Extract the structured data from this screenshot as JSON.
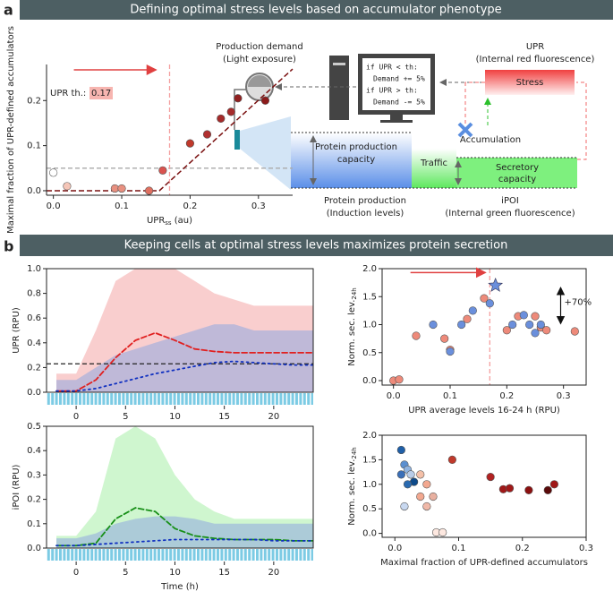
{
  "header_a": {
    "letter": "a",
    "title": "Defining optimal stress levels based on accumulator phenotype"
  },
  "header_b": {
    "letter": "b",
    "title": "Keeping cells at optimal stress levels maximizes protein secretion"
  },
  "diagram": {
    "demand": "Production demand",
    "demand_sub": "(Light exposure)",
    "upr": "UPR",
    "upr_sub": "(Internal red fluorescence)",
    "stress": "Stress",
    "code": [
      "if UPR < th:",
      "Demand += 5%",
      "if UPR > th:",
      "Demand -= 5%"
    ],
    "accumulation": "Accumulation",
    "capacity_1": "Protein production",
    "capacity_2": "capacity",
    "traffic": "Traffic",
    "secretory_1": "Secretory",
    "secretory_2": "capacity",
    "induction_1": "Protein production",
    "induction_2": "(Induction levels)",
    "ipoi": "iPOI",
    "ipoi_sub": "(Internal green fluorescence)"
  },
  "chart_data": [
    {
      "type": "scatter",
      "x_label": {
        "main": "UPR",
        "sub": "ss",
        "unit": " (au)"
      },
      "y_label": "Maximal fraction of UPR-defined accumulators",
      "xlim": [
        -0.01,
        0.35
      ],
      "xticks": [
        {
          "value": 0,
          "label": "0.0"
        },
        0.1,
        0.2,
        0.3
      ],
      "ylim": [
        -0.01,
        0.28
      ],
      "yticks": [
        {
          "value": 0,
          "label": "0.0"
        },
        0.1,
        0.2
      ],
      "series": [
        {
          "x": [
            0.0,
            0.02,
            0.09,
            0.1,
            0.14,
            0.16,
            0.2,
            0.225,
            0.245,
            0.26,
            0.27,
            0.31
          ],
          "values": [
            0.04,
            0.01,
            0.005,
            0.005,
            0.0,
            0.045,
            0.105,
            0.125,
            0.16,
            0.175,
            0.205,
            0.2
          ],
          "colors": [
            "#ffffff",
            "#f5c6b8",
            "#e89080",
            "#e89080",
            "#e07060",
            "#d9534f",
            "#c0392b",
            "#b03030",
            "#a52a2a",
            "#a52a2a",
            "#902020",
            "#8b1a1a"
          ]
        }
      ],
      "fit": {
        "x": [
          -0.01,
          0.155,
          0.35
        ],
        "values": [
          0.0,
          0.0,
          0.27
        ],
        "color": "#7a1010"
      },
      "vlines": [
        {
          "value": 0.17,
          "color": "#f4a0a0"
        }
      ],
      "hlines": [
        {
          "value": 0.05,
          "color": "#aaaaaa"
        }
      ],
      "annotation": "UPR th.:",
      "threshold": 0.17
    },
    {
      "type": "line",
      "y_label": "UPR (RPU)",
      "xlim": [
        -3,
        24
      ],
      "xticks": [
        0,
        5,
        10,
        15,
        20
      ],
      "ylim": [
        0,
        1
      ],
      "yticks": [
        {
          "value": 0,
          "label": "0.0"
        },
        0.2,
        0.4,
        0.6,
        0.8,
        {
          "value": 1,
          "label": "1.0"
        }
      ],
      "x": [
        -2,
        0,
        2,
        4,
        6,
        8,
        10,
        12,
        14,
        16,
        18,
        20,
        22,
        24
      ],
      "series": [
        {
          "kind": "area",
          "color": "#f4a6a6",
          "values": [
            0.15,
            0.15,
            0.5,
            0.9,
            1,
            1,
            1,
            0.9,
            0.8,
            0.75,
            0.7,
            0.7,
            0.7,
            0.7
          ]
        },
        {
          "kind": "area",
          "color": "#8fa8e0",
          "values": [
            0.1,
            0.1,
            0.2,
            0.3,
            0.35,
            0.4,
            0.45,
            0.5,
            0.55,
            0.55,
            0.5,
            0.5,
            0.5,
            0.5
          ]
        },
        {
          "style": "dashed",
          "color": "#e02020",
          "values": [
            0.01,
            0.01,
            0.1,
            0.28,
            0.42,
            0.48,
            0.42,
            0.35,
            0.33,
            0.32,
            0.32,
            0.32,
            0.32,
            0.32
          ]
        },
        {
          "style": "dotted",
          "color": "#1030c0",
          "values": [
            0.01,
            0.01,
            0.03,
            0.07,
            0.11,
            0.15,
            0.18,
            0.21,
            0.24,
            0.25,
            0.24,
            0.23,
            0.22,
            0.22
          ]
        }
      ],
      "hlines": [
        {
          "value": 0.23,
          "color": "#222222"
        }
      ]
    },
    {
      "type": "line",
      "y_label": "iPOI (RPU)",
      "x_label": "Time (h)",
      "xlim": [
        -3,
        24
      ],
      "xticks": [
        0,
        5,
        10,
        15,
        20
      ],
      "ylim": [
        0,
        0.5
      ],
      "yticks": [
        {
          "value": 0,
          "label": "0.0"
        },
        0.1,
        0.2,
        0.3,
        0.4,
        0.5
      ],
      "x": [
        -2,
        0,
        2,
        4,
        6,
        8,
        10,
        12,
        14,
        16,
        18,
        20,
        22,
        24
      ],
      "series": [
        {
          "kind": "area",
          "color": "#a8eea8",
          "values": [
            0.05,
            0.05,
            0.15,
            0.45,
            0.5,
            0.45,
            0.3,
            0.2,
            0.15,
            0.12,
            0.12,
            0.12,
            0.12,
            0.12
          ]
        },
        {
          "kind": "area",
          "color": "#8fa8e0",
          "values": [
            0.04,
            0.04,
            0.06,
            0.1,
            0.12,
            0.13,
            0.13,
            0.12,
            0.1,
            0.1,
            0.1,
            0.1,
            0.1,
            0.1
          ]
        },
        {
          "style": "dashed",
          "color": "#189018",
          "values": [
            0.01,
            0.01,
            0.02,
            0.12,
            0.165,
            0.15,
            0.08,
            0.05,
            0.04,
            0.035,
            0.035,
            0.035,
            0.03,
            0.03
          ]
        },
        {
          "style": "dotted",
          "color": "#1030c0",
          "values": [
            0.01,
            0.01,
            0.015,
            0.02,
            0.025,
            0.03,
            0.035,
            0.035,
            0.035,
            0.035,
            0.035,
            0.03,
            0.03,
            0.03
          ]
        }
      ]
    },
    {
      "type": "scatter",
      "y_label": {
        "main": "Norm. sec. lev.",
        "sub": "24h"
      },
      "x_label": "UPR average levels 16-24 h (RPU)",
      "xlim": [
        -0.02,
        0.34
      ],
      "xticks": [
        {
          "value": 0,
          "label": "0.0"
        },
        0.1,
        0.2,
        0.3
      ],
      "ylim": [
        -0.08,
        2.0
      ],
      "yticks": [
        {
          "value": 0,
          "label": "0.0"
        },
        0.5,
        {
          "value": 1,
          "label": "1.0"
        },
        1.5,
        {
          "value": 2,
          "label": "2.0"
        }
      ],
      "series": [
        {
          "color": "#ee8a7a",
          "x": [
            0.0,
            0.01,
            0.04,
            0.09,
            0.1,
            0.13,
            0.16,
            0.2,
            0.22,
            0.25,
            0.26,
            0.27,
            0.32
          ],
          "values": [
            0.0,
            0.02,
            0.8,
            0.75,
            0.55,
            1.1,
            1.47,
            0.9,
            1.15,
            1.15,
            0.95,
            0.9,
            0.88
          ]
        },
        {
          "color": "#6a8fdc",
          "x": [
            0.07,
            0.1,
            0.12,
            0.14,
            0.17,
            0.21,
            0.23,
            0.24,
            0.25,
            0.26
          ],
          "values": [
            1.0,
            0.52,
            1.0,
            1.25,
            1.38,
            1.0,
            1.17,
            1.0,
            0.85,
            1.0
          ]
        }
      ],
      "star": {
        "x": 0.18,
        "value": 1.7,
        "color": "#6a8fdc"
      },
      "vlines": [
        {
          "value": 0.17,
          "color": "#f4a0a0"
        }
      ],
      "annotation": "+70%"
    },
    {
      "type": "scatter",
      "y_label": {
        "main": "Norm. sec. lev.",
        "sub": "24h"
      },
      "x_label": "Maximal fraction of UPR-defined accumulators",
      "xlim": [
        -0.02,
        0.3
      ],
      "xticks": [
        {
          "value": 0,
          "label": "0.0"
        },
        0.1,
        0.2,
        0.3
      ],
      "ylim": [
        -0.08,
        2.0
      ],
      "yticks": [
        {
          "value": 0,
          "label": "0.0"
        },
        0.5,
        {
          "value": 1,
          "label": "1.0"
        },
        1.5,
        {
          "value": 2,
          "label": "2.0"
        }
      ],
      "series": [
        {
          "x": [
            0.01,
            0.015,
            0.02,
            0.01,
            0.025,
            0.03,
            0.02,
            0.015,
            0.04,
            0.05,
            0.04,
            0.06,
            0.05,
            0.065,
            0.075,
            0.09,
            0.15,
            0.17,
            0.18,
            0.21,
            0.24,
            0.25
          ],
          "values": [
            1.7,
            1.4,
            1.3,
            1.2,
            1.2,
            1.05,
            1.0,
            0.55,
            1.2,
            1.0,
            0.75,
            0.75,
            0.55,
            0.02,
            0.02,
            1.5,
            1.15,
            0.9,
            0.92,
            0.88,
            0.88,
            1.0
          ],
          "colors": [
            "#1f5fa8",
            "#5b8fd0",
            "#8fb3e0",
            "#3a6fb8",
            "#b8cce8",
            "#0d4a8a",
            "#2a6ab0",
            "#c8d8f0",
            "#f4c0a8",
            "#f2a890",
            "#f2a890",
            "#e8b0a0",
            "#f0b8a8",
            "#fde8e0",
            "#fde8e0",
            "#c0392b",
            "#b22222",
            "#a01818",
            "#a01818",
            "#8b1010",
            "#5a0a0a",
            "#a01818"
          ]
        }
      ]
    }
  ]
}
